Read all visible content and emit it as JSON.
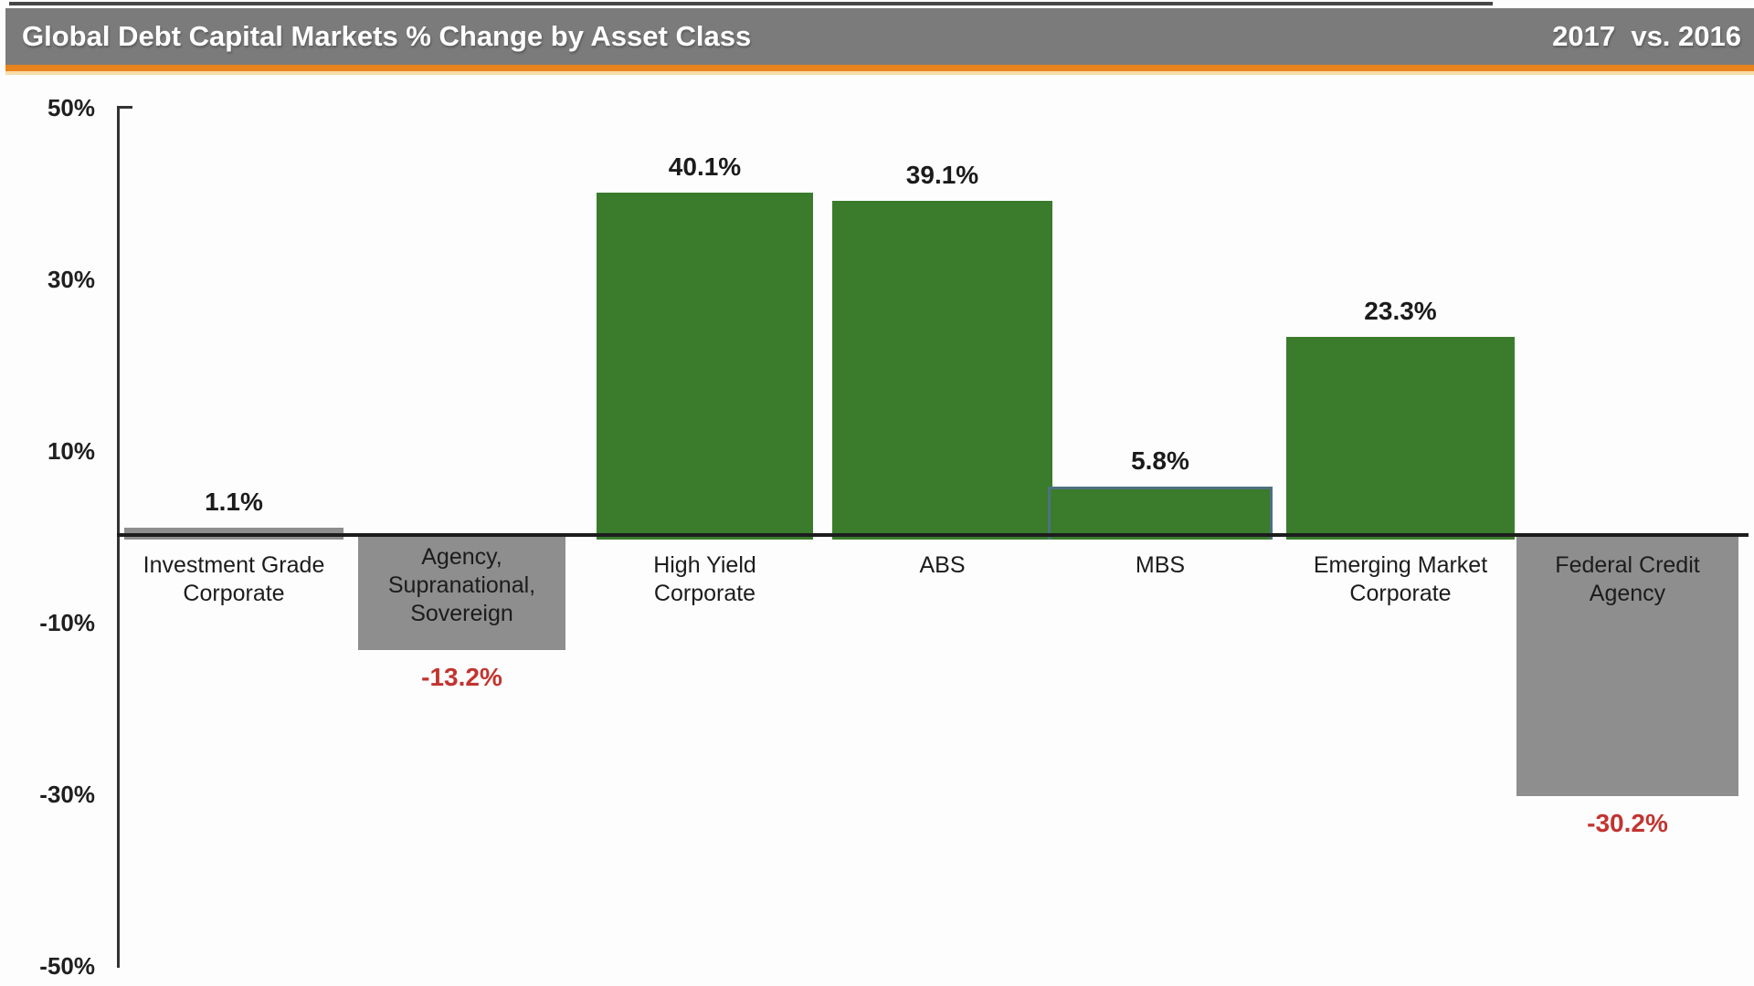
{
  "header": {
    "title": "Global Debt Capital Markets % Change by Asset Class",
    "period": "2017  vs. 2016",
    "bar_color": "#7b7b7b",
    "underline_color": "#e8831d",
    "text_color": "#ffffff"
  },
  "chart_data": {
    "type": "bar",
    "title": "Global Debt Capital Markets % Change by Asset Class",
    "subtitle": "2017 vs. 2016",
    "categories": [
      "Investment Grade Corporate",
      "Agency, Supranational, Sovereign",
      "High Yield Corporate",
      "ABS",
      "MBS",
      "Emerging Market Corporate",
      "Federal Credit Agency"
    ],
    "values": [
      1.1,
      -13.2,
      40.1,
      39.1,
      5.8,
      23.3,
      -30.2
    ],
    "value_labels": [
      "1.1%",
      "-13.2%",
      "40.1%",
      "39.1%",
      "5.8%",
      "23.3%",
      "-30.2%"
    ],
    "xlabel": "",
    "ylabel": "",
    "ylim": [
      -50,
      50
    ],
    "yticks": [
      50,
      30,
      10,
      -10,
      -30,
      -50
    ],
    "ytick_labels": [
      "50%",
      "30%",
      "10%",
      "-10%",
      "-30%",
      "-50%"
    ],
    "grid": false,
    "legend": false,
    "colors": {
      "bar_green": "#3a7c2b",
      "bar_gray": "#8e8e8e",
      "mbs_border_slate": "#4e7180",
      "negative_value_text": "#c23430",
      "positive_value_text": "#1b1b1b",
      "axis": "#333333"
    }
  },
  "bars": [
    {
      "name": "investment-grade-corporate",
      "label_lines": [
        "Investment Grade",
        "Corporate"
      ],
      "value": 1.1,
      "value_label": "1.1%",
      "fill": "gray",
      "border": "none",
      "label_placement": "below-axis",
      "value_placement": "above-bar"
    },
    {
      "name": "agency-supranational-sovereign",
      "label_lines": [
        "Agency,",
        "Supranational,",
        "Sovereign"
      ],
      "value": -13.2,
      "value_label": "-13.2%",
      "fill": "gray",
      "border": "none",
      "label_placement": "inside-bar",
      "value_placement": "below-bar"
    },
    {
      "name": "high-yield-corporate",
      "label_lines": [
        "High Yield",
        "Corporate"
      ],
      "value": 40.1,
      "value_label": "40.1%",
      "fill": "green",
      "border": "none",
      "label_placement": "below-axis",
      "value_placement": "above-bar"
    },
    {
      "name": "abs",
      "label_lines": [
        "ABS"
      ],
      "value": 39.1,
      "value_label": "39.1%",
      "fill": "green",
      "border": "none",
      "label_placement": "below-axis",
      "value_placement": "above-bar"
    },
    {
      "name": "mbs",
      "label_lines": [
        "MBS"
      ],
      "value": 5.8,
      "value_label": "5.8%",
      "fill": "green",
      "border": "slate",
      "label_placement": "below-axis",
      "value_placement": "above-bar"
    },
    {
      "name": "emerging-market-corporate",
      "label_lines": [
        "Emerging Market",
        "Corporate"
      ],
      "value": 23.3,
      "value_label": "23.3%",
      "fill": "green",
      "border": "none",
      "label_placement": "below-axis",
      "value_placement": "above-bar"
    },
    {
      "name": "federal-credit-agency",
      "label_lines": [
        "Federal Credit",
        "Agency"
      ],
      "value": -30.2,
      "value_label": "-30.2%",
      "fill": "gray",
      "border": "none",
      "label_placement": "inside-bar",
      "value_placement": "below-bar"
    }
  ]
}
